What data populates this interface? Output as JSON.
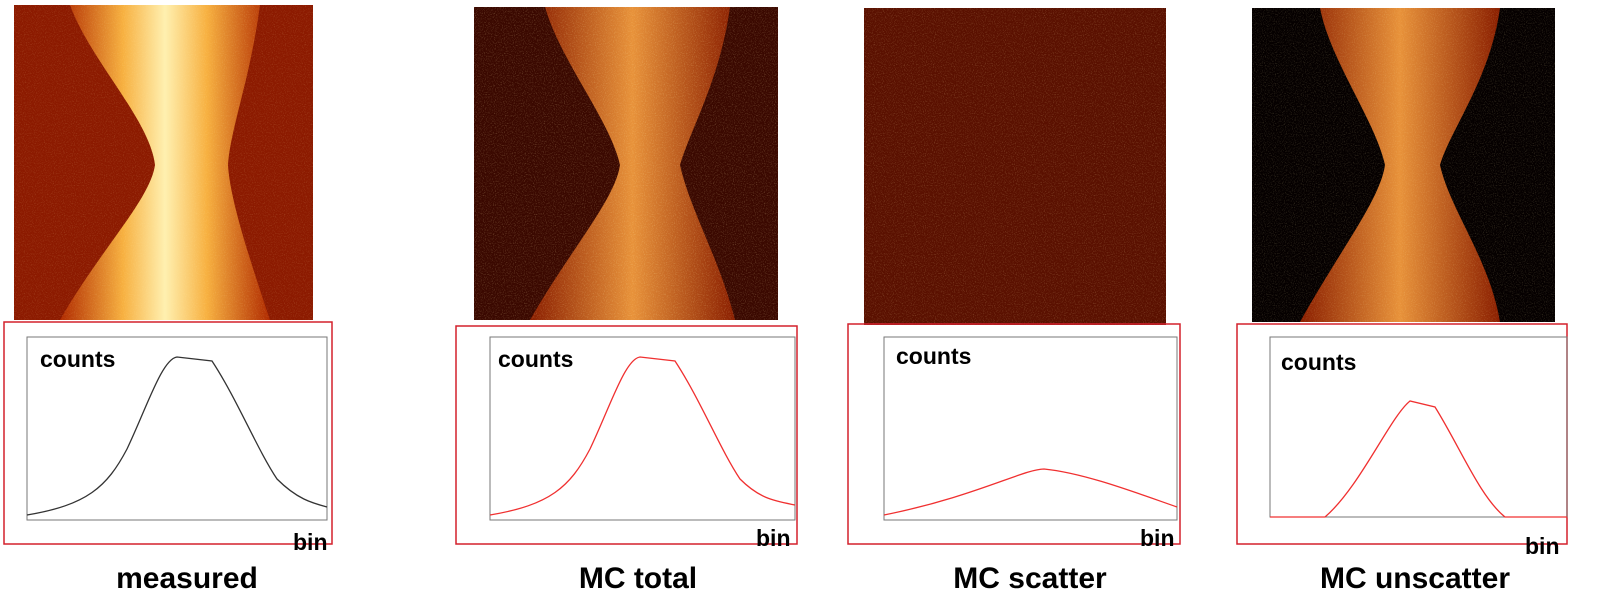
{
  "panels": [
    {
      "caption": "measured",
      "ylabel": "counts",
      "xlabel": "bin"
    },
    {
      "caption": "MC total",
      "ylabel": "counts",
      "xlabel": "bin"
    },
    {
      "caption": "MC scatter",
      "ylabel": "counts",
      "xlabel": "bin"
    },
    {
      "caption": "MC unscatter",
      "ylabel": "counts",
      "xlabel": "bin"
    }
  ]
}
